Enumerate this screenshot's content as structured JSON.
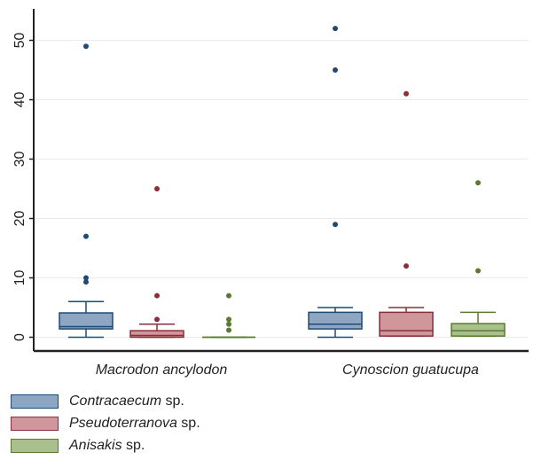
{
  "chart_data": {
    "type": "box",
    "title": "",
    "xlabel": "",
    "ylabel": "",
    "ylim": [
      -2.5,
      55.5
    ],
    "yticks": [
      0,
      10,
      20,
      30,
      40,
      50
    ],
    "grid": true,
    "legend_position": "bottom-left",
    "categories": [
      "Macrodon ancylodon",
      "Cynoscion guatucupa"
    ],
    "series": [
      {
        "name": "Contracaecum",
        "suffix": " sp.",
        "fill": "#8ea6c1",
        "stroke": "#1f4a73",
        "boxes": [
          {
            "whisker_low": 0,
            "q1": 1.4,
            "median": 1.8,
            "q3": 4.1,
            "whisker_high": 6,
            "outliers": [
              9.3,
              10,
              17,
              49
            ]
          },
          {
            "whisker_low": 0,
            "q1": 1.4,
            "median": 2.2,
            "q3": 4.2,
            "whisker_high": 5,
            "outliers": [
              19,
              45,
              52
            ]
          }
        ]
      },
      {
        "name": "Pseudoterranova",
        "suffix": " sp.",
        "fill": "#cf979c",
        "stroke": "#8b2e3a",
        "boxes": [
          {
            "whisker_low": 0,
            "q1": 0,
            "median": 0.3,
            "q3": 1.1,
            "whisker_high": 2.2,
            "outliers": [
              3,
              7,
              25
            ]
          },
          {
            "whisker_low": 0.2,
            "q1": 0.2,
            "median": 1.1,
            "q3": 4.2,
            "whisker_high": 5,
            "outliers": [
              12,
              41
            ]
          }
        ]
      },
      {
        "name": "Anisakis",
        "suffix": " sp.",
        "fill": "#a9bf8c",
        "stroke": "#5a7a30",
        "boxes": [
          {
            "whisker_low": 0,
            "q1": 0,
            "median": 0,
            "q3": 0,
            "whisker_high": 0,
            "outliers": [
              1.2,
              2.2,
              3,
              7
            ]
          },
          {
            "whisker_low": 0.2,
            "q1": 0.2,
            "median": 1.1,
            "q3": 2.3,
            "whisker_high": 4.2,
            "outliers": [
              11.2,
              26
            ]
          }
        ]
      }
    ]
  }
}
